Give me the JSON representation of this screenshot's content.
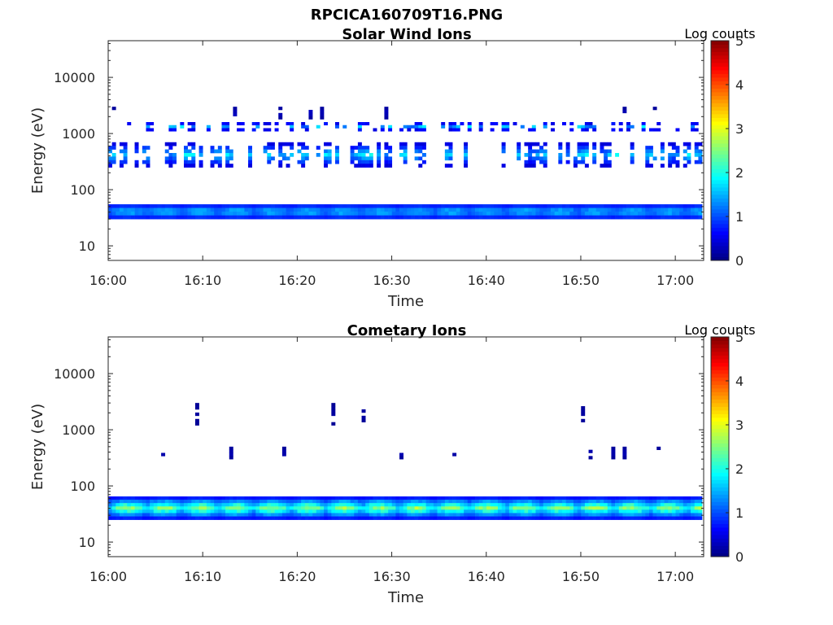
{
  "figure": {
    "title": "RPCICA160709T16.PNG"
  },
  "chart_data": [
    {
      "type": "heatmap",
      "title": "Solar Wind Ions",
      "xlabel": "Time",
      "ylabel": "Energy (eV)",
      "xscale": "time",
      "yscale": "log",
      "xlim": [
        "16:00",
        "17:03"
      ],
      "ylim": [
        5.5,
        45000
      ],
      "xticks": [
        "16:00",
        "16:10",
        "16:20",
        "16:30",
        "16:40",
        "16:50",
        "17:00"
      ],
      "yticks": [
        "10",
        "100",
        "1000",
        "10000"
      ],
      "colorbar": {
        "label": "Log counts",
        "range": [
          0,
          5
        ],
        "ticks": [
          "0",
          "1",
          "2",
          "3",
          "4",
          "5"
        ],
        "colormap": "jet"
      },
      "features": [
        {
          "energy_range_eV": [
            30,
            55
          ],
          "log_counts": [
            0.6,
            1.8
          ],
          "description": "continuous band"
        },
        {
          "energy_range_eV": [
            250,
            700
          ],
          "log_counts": [
            0.3,
            2.0
          ],
          "description": "intermittent band"
        },
        {
          "energy_range_eV": [
            1100,
            1600
          ],
          "log_counts": [
            0.2,
            1.9
          ],
          "description": "intermittent band"
        },
        {
          "energy_range_eV": [
            1800,
            3000
          ],
          "log_counts": [
            0.1,
            0.4
          ],
          "description": "sparse"
        }
      ]
    },
    {
      "type": "heatmap",
      "title": "Cometary Ions",
      "xlabel": "Time",
      "ylabel": "Energy (eV)",
      "xscale": "time",
      "yscale": "log",
      "xlim": [
        "16:00",
        "17:03"
      ],
      "ylim": [
        5.5,
        45000
      ],
      "xticks": [
        "16:00",
        "16:10",
        "16:20",
        "16:30",
        "16:40",
        "16:50",
        "17:00"
      ],
      "yticks": [
        "10",
        "100",
        "1000",
        "10000"
      ],
      "colorbar": {
        "label": "Log counts",
        "range": [
          0,
          5
        ],
        "ticks": [
          "0",
          "1",
          "2",
          "3",
          "4",
          "5"
        ],
        "colormap": "jet"
      },
      "features": [
        {
          "energy_range_eV": [
            25,
            65
          ],
          "log_counts": [
            0.5,
            2.9
          ],
          "description": "continuous band"
        },
        {
          "energy_range_eV": [
            300,
            500
          ],
          "log_counts": [
            0.1,
            0.3
          ],
          "description": "sparse"
        },
        {
          "energy_range_eV": [
            1200,
            3000
          ],
          "log_counts": [
            0.1,
            0.2
          ],
          "description": "sparse"
        }
      ]
    }
  ]
}
